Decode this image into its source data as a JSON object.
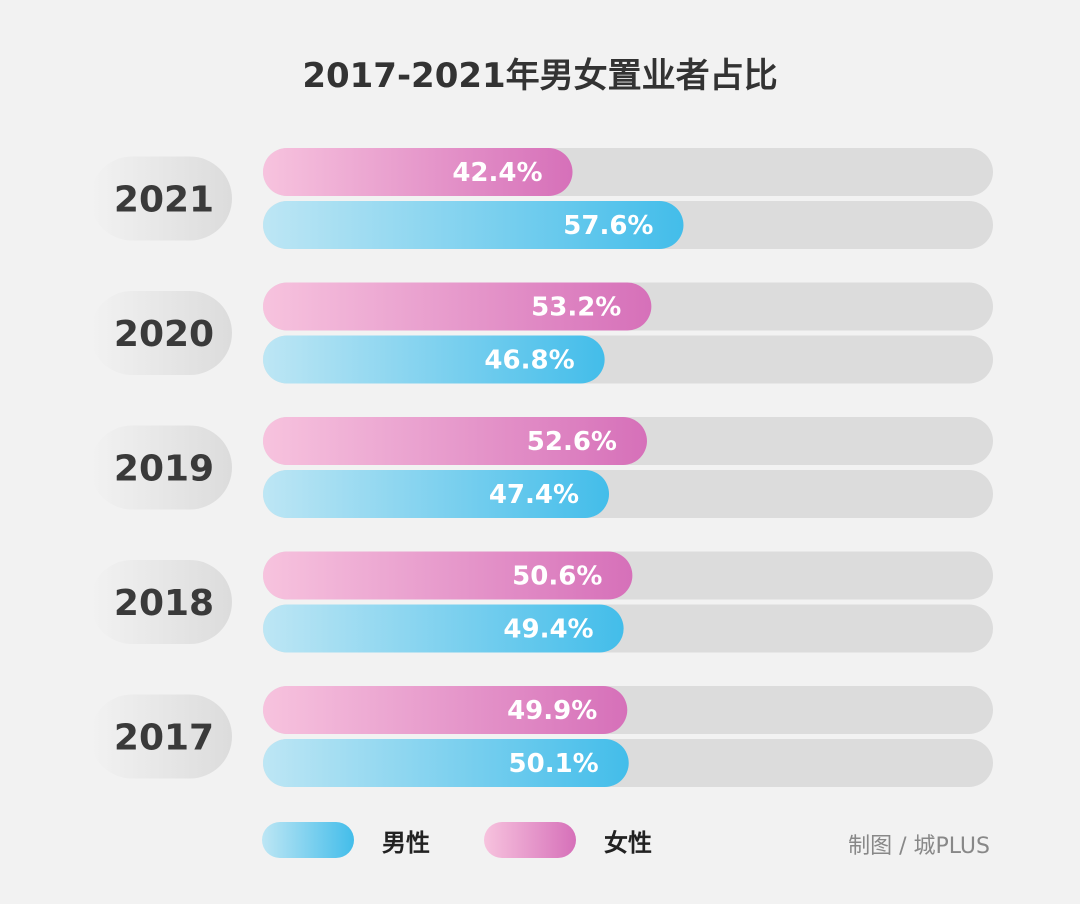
{
  "colors": {
    "male_start": "#bde6f4",
    "male_end": "#43bdea",
    "female_start": "#f7c3de",
    "female_end": "#d670b9",
    "track": "#dcdcdc",
    "pill": "#e2e2e2"
  },
  "legend": {
    "male": "男性",
    "female": "女性"
  },
  "source": "制图 / 城PLUS",
  "chart_data": {
    "type": "bar",
    "title": "2017-2021年男女置业者占比",
    "categories": [
      "2021",
      "2020",
      "2019",
      "2018",
      "2017"
    ],
    "series": [
      {
        "name": "女性",
        "values": [
          42.4,
          53.2,
          52.6,
          50.6,
          49.9
        ],
        "labels": [
          "42.4%",
          "53.2%",
          "52.6%",
          "50.6%",
          "49.9%"
        ]
      },
      {
        "name": "男性",
        "values": [
          57.6,
          46.8,
          47.4,
          49.4,
          50.1
        ],
        "labels": [
          "57.6%",
          "46.8%",
          "47.4%",
          "49.4%",
          "50.1%"
        ]
      }
    ],
    "xlim": [
      0,
      100
    ],
    "orientation": "horizontal"
  }
}
